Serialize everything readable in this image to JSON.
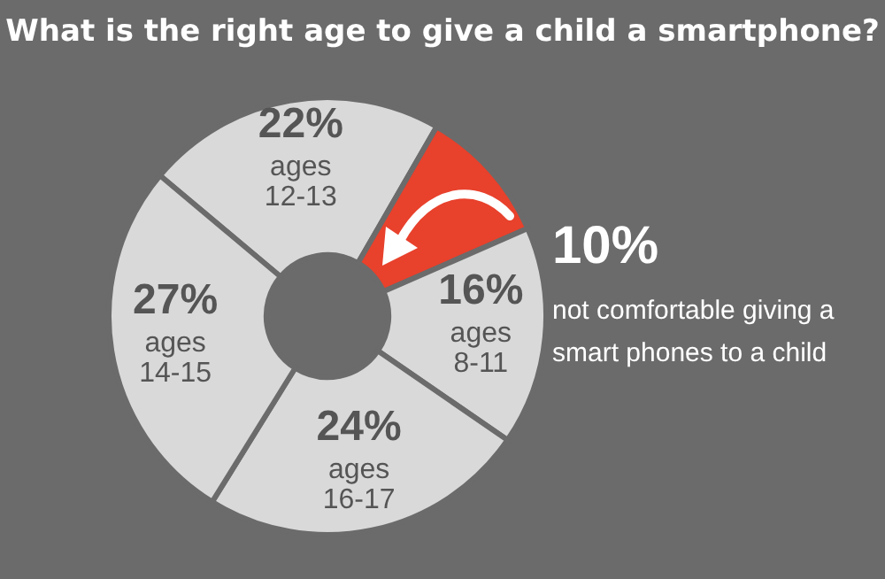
{
  "chart_data": {
    "type": "donut",
    "title": "What is the right age to give a child a smartphone?",
    "categories": [
      "ages 12-13",
      "not comfortable giving a smart phones to a child",
      "ages 8-11",
      "ages 16-17",
      "ages 14-15"
    ],
    "values": [
      22,
      10,
      16,
      24,
      27
    ],
    "colors": [
      "#d9d9d9",
      "#e8412c",
      "#d9d9d9",
      "#d9d9d9",
      "#d9d9d9"
    ],
    "value_labels": [
      "22%",
      "10%",
      "16%",
      "24%",
      "27%"
    ],
    "legend": false
  }
}
